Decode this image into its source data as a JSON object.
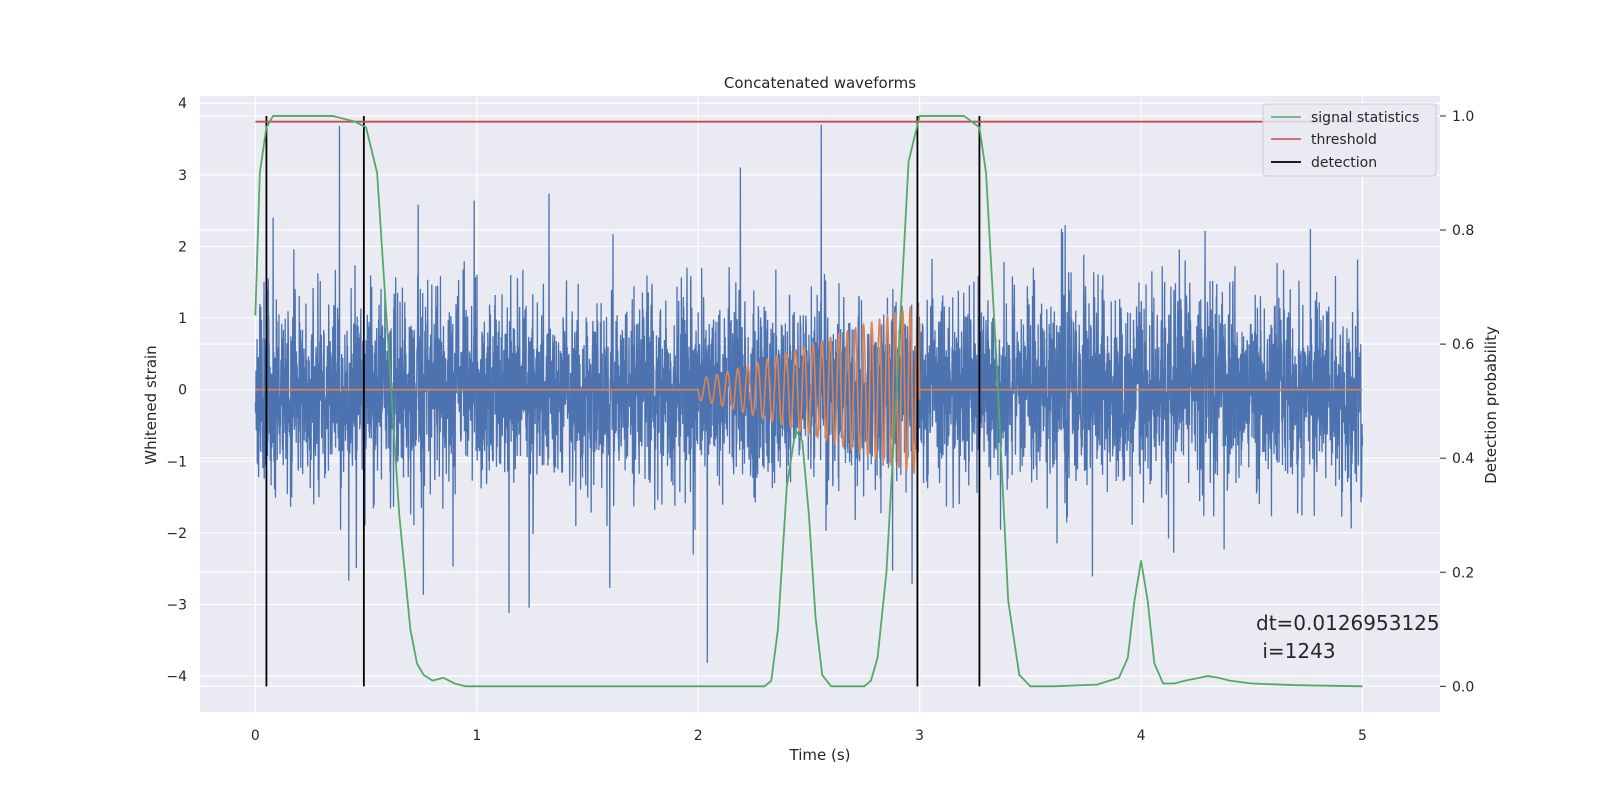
{
  "chart_data": {
    "type": "line",
    "title": "Concatenated waveforms",
    "xlabel": "Time (s)",
    "ylabel": "Whitened strain",
    "y2label": "Detection probability",
    "xlim": [
      -0.25,
      5.35
    ],
    "ylim": [
      -4.5,
      4.1
    ],
    "y2lim": [
      -0.045,
      1.035
    ],
    "xticks": [
      0,
      1,
      2,
      3,
      4,
      5
    ],
    "yticks": [
      -4,
      -3,
      -2,
      -1,
      0,
      1,
      2,
      3,
      4
    ],
    "y2ticks": [
      0.0,
      0.2,
      0.4,
      0.6,
      0.8,
      1.0
    ],
    "grid": true,
    "legend_position": "top-right",
    "colors": {
      "noise": "#4c72b0",
      "injected_signal": "#dd8452",
      "signal_statistics": "#55a868",
      "threshold": "#c44e52",
      "detection": "#000000",
      "axes_bg": "#eaeaf2",
      "grid": "#ffffff"
    },
    "series": [
      {
        "name": "signal statistics",
        "axis": "right",
        "x": [
          0.0,
          0.02,
          0.05,
          0.08,
          0.12,
          0.2,
          0.35,
          0.45,
          0.5,
          0.55,
          0.6,
          0.65,
          0.7,
          0.73,
          0.76,
          0.8,
          0.85,
          0.9,
          0.95,
          1.0,
          1.5,
          2.0,
          2.3,
          2.33,
          2.36,
          2.4,
          2.44,
          2.47,
          2.5,
          2.53,
          2.56,
          2.6,
          2.65,
          2.7,
          2.75,
          2.78,
          2.81,
          2.85,
          2.9,
          2.95,
          3.0,
          3.1,
          3.2,
          3.27,
          3.3,
          3.35,
          3.4,
          3.45,
          3.5,
          3.6,
          3.8,
          3.9,
          3.94,
          3.97,
          4.0,
          4.03,
          4.06,
          4.1,
          4.15,
          4.2,
          4.3,
          4.35,
          4.4,
          4.5,
          4.7,
          5.0
        ],
        "y": [
          0.65,
          0.9,
          0.98,
          1.0,
          1.0,
          1.0,
          1.0,
          0.99,
          0.98,
          0.9,
          0.6,
          0.3,
          0.1,
          0.04,
          0.02,
          0.01,
          0.015,
          0.005,
          0.0,
          0.0,
          0.0,
          0.0,
          0.0,
          0.01,
          0.1,
          0.35,
          0.45,
          0.43,
          0.3,
          0.12,
          0.02,
          0.0,
          0.0,
          0.0,
          0.0,
          0.01,
          0.05,
          0.2,
          0.55,
          0.92,
          1.0,
          1.0,
          1.0,
          0.98,
          0.9,
          0.55,
          0.15,
          0.02,
          0.0,
          0.0,
          0.003,
          0.015,
          0.05,
          0.15,
          0.22,
          0.15,
          0.04,
          0.005,
          0.005,
          0.01,
          0.018,
          0.015,
          0.01,
          0.005,
          0.002,
          0.0
        ]
      },
      {
        "name": "threshold",
        "axis": "right",
        "x": [
          0.0,
          5.0
        ],
        "y": [
          0.99,
          0.99
        ]
      }
    ],
    "noise": {
      "axis": "left",
      "segments": [
        {
          "t0": 0.0,
          "t1": 0.5,
          "std": 0.65,
          "seed": 11
        },
        {
          "t0": 0.5,
          "t1": 1.0,
          "std": 0.65,
          "seed": 23
        },
        {
          "t0": 1.0,
          "t1": 2.0,
          "std": 0.65,
          "seed": 37
        },
        {
          "t0": 2.0,
          "t1": 3.0,
          "std": 0.65,
          "seed": 41
        },
        {
          "t0": 3.0,
          "t1": 4.0,
          "std": 0.65,
          "seed": 53
        },
        {
          "t0": 4.0,
          "t1": 5.0,
          "std": 0.65,
          "seed": 67
        }
      ]
    },
    "injected_signal": {
      "axis": "left",
      "t_start": 2.0,
      "t_end": 3.0,
      "amp_start": 0.15,
      "amp_end": 1.2,
      "freq_start": 20,
      "freq_end": 30
    },
    "detections": [
      0.05,
      0.49,
      2.99,
      3.27
    ],
    "legend": [
      {
        "label": "signal statistics",
        "kind": "line",
        "color": "#55a868"
      },
      {
        "label": "threshold",
        "kind": "line",
        "color": "#c44e52"
      },
      {
        "label": "detection",
        "kind": "line",
        "color": "#000000"
      }
    ],
    "annotation": {
      "line1": "dt=0.0126953125",
      "line2": " i=1243"
    }
  }
}
